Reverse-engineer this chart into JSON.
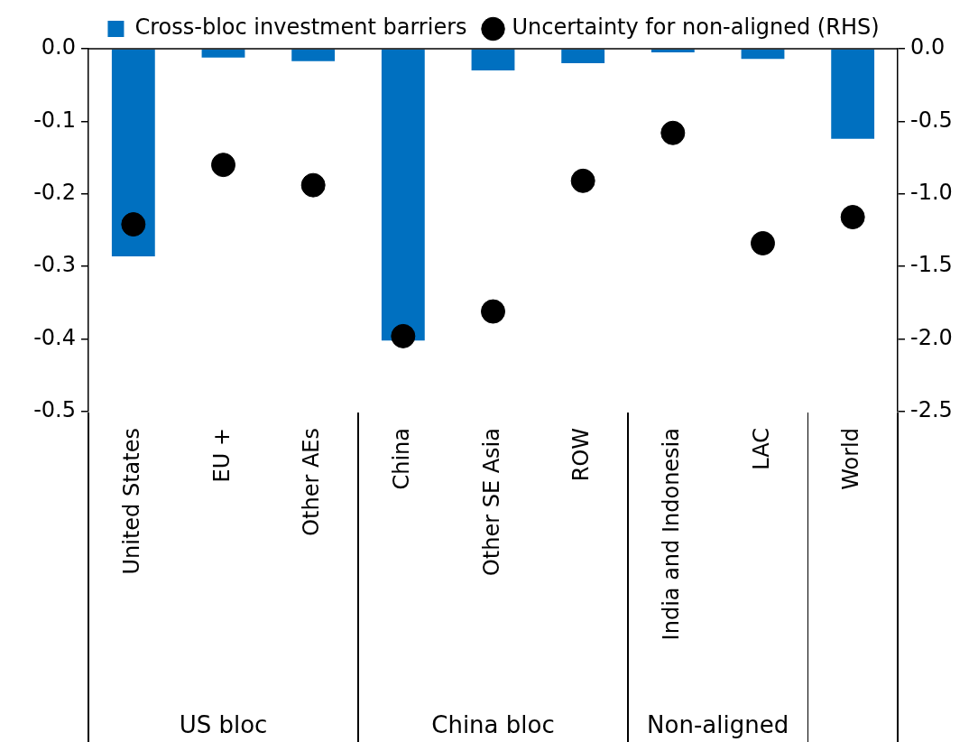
{
  "chart_data": {
    "type": "bar",
    "categories": [
      "United States",
      "EU +",
      "Other AEs",
      "China",
      "Other SE Asia",
      "ROW",
      "India and Indonesia",
      "LAC",
      "World"
    ],
    "series": [
      {
        "name": "Cross-bloc investment barriers",
        "color": "#0070c0",
        "values": [
          -0.286,
          -0.012,
          -0.017,
          -0.402,
          -0.03,
          -0.02,
          -0.005,
          -0.014,
          -0.124
        ]
      },
      {
        "name": "Uncertainty for non-aligned (RHS)",
        "type": "scatter",
        "axis": "y2",
        "color": "#000000",
        "marker": "circle",
        "values": [
          -1.21,
          -0.8,
          -0.94,
          -1.98,
          -1.81,
          -0.91,
          -0.58,
          -1.34,
          -1.16
        ]
      }
    ],
    "ylim": [
      -0.5,
      0
    ],
    "yticks": [
      {
        "value": 0,
        "label": "0.0"
      },
      -0.1,
      -0.2,
      -0.3,
      -0.4,
      -0.5
    ],
    "y2lim": [
      -2.5,
      0
    ],
    "y2ticks": [
      {
        "value": 0,
        "label": "0.0"
      },
      -0.5,
      {
        "value": -1,
        "label": "-1.0"
      },
      -1.5,
      {
        "value": -2,
        "label": "-2.0"
      },
      -2.5
    ],
    "annotations": [
      "US bloc",
      "China bloc",
      "Non-aligned"
    ],
    "grid": false,
    "legend": "top"
  }
}
